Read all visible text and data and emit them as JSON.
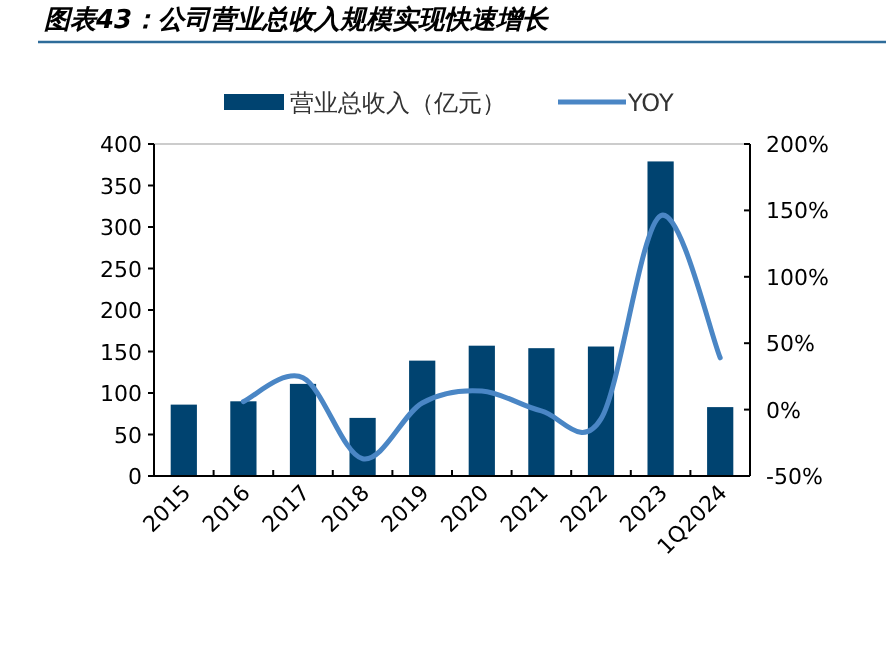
{
  "chart_data": {
    "type": "bar",
    "title": "图表43：公司营业总收入规模实现快速增长",
    "categories": [
      "2015",
      "2016",
      "2017",
      "2018",
      "2019",
      "2020",
      "2021",
      "2022",
      "2023",
      "1Q2024"
    ],
    "series": [
      {
        "name": "营业总收入（亿元）",
        "color": "#004370",
        "values": [
          86,
          90,
          111,
          70,
          139,
          157,
          154,
          156,
          379,
          83
        ]
      },
      {
        "name": "YOY",
        "type": "line",
        "axis": "y2",
        "color": "#4a86c5",
        "values": [
          null,
          6,
          24,
          -37,
          5,
          14,
          -1,
          -7,
          146,
          39
        ]
      }
    ],
    "ylim": [
      0,
      400
    ],
    "yticks": [
      0,
      50,
      100,
      150,
      200,
      250,
      300,
      350,
      400
    ],
    "y2lim": [
      -50,
      200
    ],
    "y2ticks": [
      {
        "value": -50,
        "label": "-50%"
      },
      {
        "value": 0,
        "label": "0%"
      },
      {
        "value": 50,
        "label": "50%"
      },
      {
        "value": 100,
        "label": "100%"
      },
      {
        "value": 150,
        "label": "150%"
      },
      {
        "value": 200,
        "label": "200%"
      }
    ],
    "legend": "top"
  }
}
